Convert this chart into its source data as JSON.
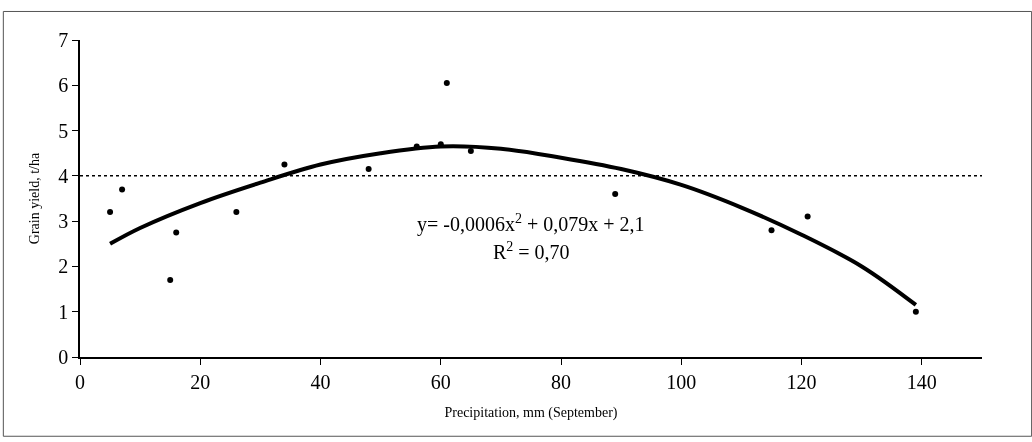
{
  "chart_data": {
    "type": "scatter",
    "xlabel": "Precipitation, mm (September)",
    "ylabel": "Grain yield, t/ha",
    "xlim": [
      0,
      150
    ],
    "xticks": [
      0,
      20,
      40,
      60,
      80,
      100,
      120,
      140
    ],
    "ylim": [
      0,
      7
    ],
    "yticks": [
      0,
      1,
      2,
      3,
      4,
      5,
      6,
      7
    ],
    "marker": "circle",
    "series": [
      {
        "color": "#000000",
        "x": [
          5,
          7,
          15,
          16,
          26,
          34,
          48,
          56,
          60,
          61,
          65,
          89,
          115,
          121,
          139
        ],
        "values": [
          3.2,
          3.7,
          1.7,
          2.75,
          3.2,
          4.25,
          4.15,
          4.65,
          4.7,
          6.05,
          4.55,
          3.6,
          2.8,
          3.1,
          1.0
        ]
      },
      {
        "type": "line",
        "color": "#000000",
        "line_style": "solid",
        "marker": "none",
        "x": [
          5,
          10,
          20,
          30,
          40,
          50,
          60,
          70,
          80,
          90,
          100,
          110,
          120,
          130,
          139
        ],
        "values": [
          2.5,
          2.85,
          3.4,
          3.85,
          4.25,
          4.5,
          4.65,
          4.6,
          4.4,
          4.15,
          3.8,
          3.3,
          2.7,
          2.0,
          1.15
        ]
      }
    ],
    "ref_lines": [
      {
        "axis": "y",
        "value": 4,
        "line_style": "dotted",
        "color": "#000000"
      }
    ],
    "annotations": [
      "y= -0,0006x$^{2}$ + 0,079x + 2,1",
      "R$^{2}$ = 0,70"
    ]
  }
}
